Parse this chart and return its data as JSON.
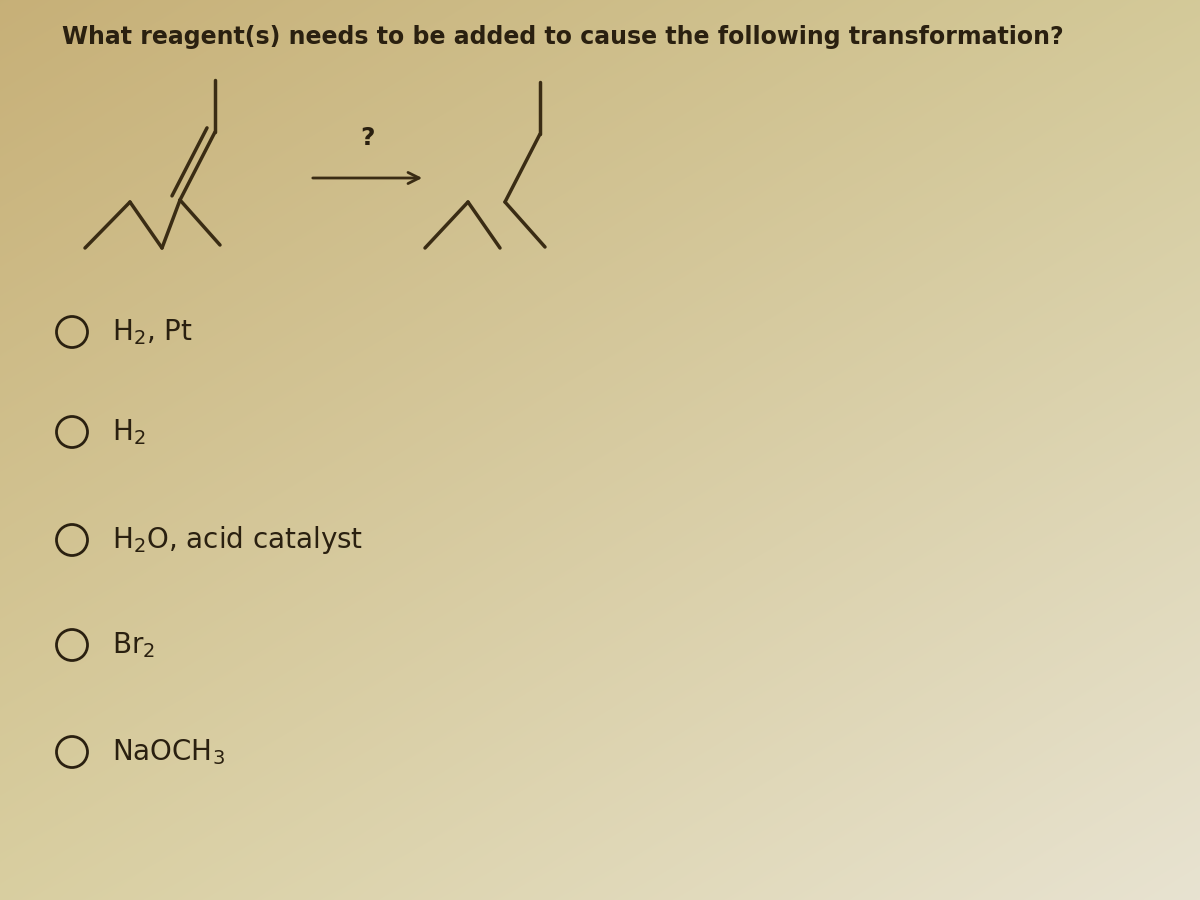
{
  "title": "What reagent(s) needs to be added to cause the following transformation?",
  "bg_top_left": "#c8b078",
  "bg_top_right": "#d4c99a",
  "bg_bottom_left": "#d8cfa0",
  "bg_bottom_right": "#e8e4d0",
  "line_color": "#3a2c14",
  "text_color": "#2a2010",
  "question_mark": "?",
  "options": [
    "H₂, Pt",
    "H₂",
    "H₂O, acid catalyst",
    "Br₂",
    "NaOCH₃"
  ],
  "title_fontsize": 17,
  "option_fontsize": 20,
  "title_bold_words": [
    "reagent(s)",
    "needs",
    "to",
    "be",
    "added",
    "to",
    "cause",
    "the",
    "following",
    "transformation?"
  ],
  "lw": 2.5
}
